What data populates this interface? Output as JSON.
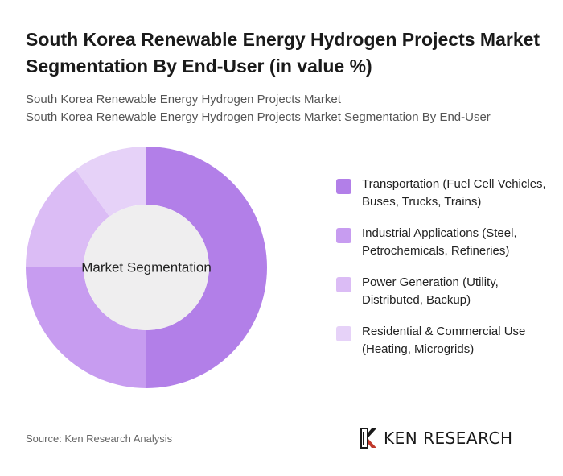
{
  "header": {
    "title": "South Korea Renewable Energy Hydrogen Projects Market Segmentation By End-User (in value %)",
    "subtitle_line1": "South Korea Renewable Energy Hydrogen Projects Market",
    "subtitle_line2": "South Korea Renewable Energy Hydrogen Projects Market Segmentation By End-User"
  },
  "chart_data": {
    "type": "pie",
    "center_label": "Market Segmentation",
    "categories": [
      "Transportation (Fuel Cell Vehicles, Buses, Trucks, Trains)",
      "Industrial Applications (Steel, Petrochemicals, Refineries)",
      "Power Generation (Utility, Distributed, Backup)",
      "Residential & Commercial Use (Heating, Microgrids)"
    ],
    "values": [
      50,
      25,
      15,
      10
    ],
    "colors": [
      "#b27fe8",
      "#c79cf0",
      "#dbbcf5",
      "#e6d2f8"
    ],
    "legend_position": "right"
  },
  "footer": {
    "source": "Source: Ken Research Analysis",
    "logo_text": "KEN RESEARCH"
  }
}
